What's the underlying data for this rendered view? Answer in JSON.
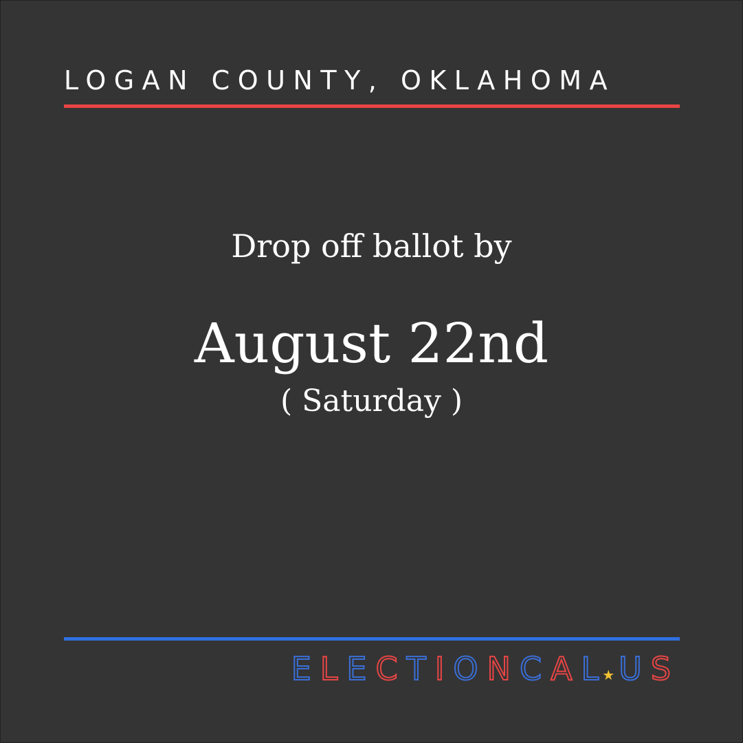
{
  "header": {
    "title": "LOGAN COUNTY, OKLAHOMA"
  },
  "main": {
    "lead": "Drop off ballot by",
    "date": "August 22nd",
    "weekday": "( Saturday )"
  },
  "brand": {
    "text_before_star": "ELECTIONCAL",
    "star_glyph": "★",
    "text_after_star": "US",
    "letter_colors": [
      "#3a6fd8",
      "#e94545",
      "#3a6fd8",
      "#e94545",
      "#3a6fd8",
      "#e94545",
      "#3a6fd8",
      "#e94545",
      "#3a6fd8",
      "#e94545",
      "#3a6fd8",
      "#3a6fd8",
      "#e94545"
    ]
  },
  "colors": {
    "background": "#343434",
    "accent_red": "#e94545",
    "accent_blue": "#2f6fe0",
    "accent_yellow": "#f2c230",
    "text": "#ffffff"
  }
}
